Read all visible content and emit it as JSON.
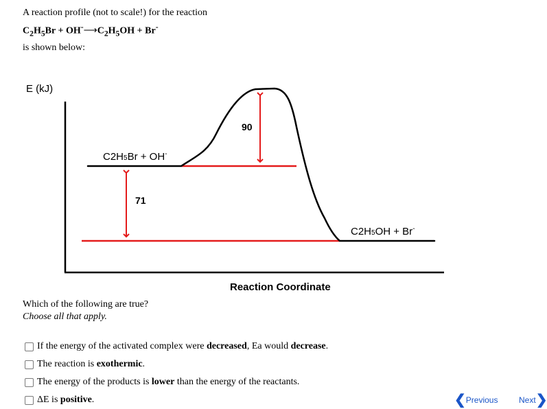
{
  "intro": {
    "line1": "A reaction profile (not to scale!) for the reaction",
    "reactant1": "C",
    "reactant1_sub1": "2",
    "reactant1_mid": "H",
    "reactant1_sub2": "5",
    "reactant1_end": "Br + OH",
    "reactant1_sup": "-",
    "product1": "C",
    "product1_sub1": "2",
    "product1_mid": "H",
    "product1_sub2": "5",
    "product1_end": "OH + Br",
    "product1_sup": "-",
    "line3": "is shown below:"
  },
  "diagram": {
    "y_axis_label": "E (kJ)",
    "x_axis_label": "Reaction Coordinate",
    "reactants_label": {
      "a": "C2H",
      "sub": "5",
      "b": "Br + OH",
      "sup": "-"
    },
    "products_label": {
      "a": "C2H",
      "sub": "5",
      "b": "OH + Br",
      "sup": "-"
    },
    "activation_energy_label": "90",
    "enthalpy_change_label": "71",
    "colors": {
      "curve": "#000000",
      "guide_lines": "#e41b1b",
      "arrows": "#e41b1b"
    }
  },
  "question": {
    "prompt": "Which of the following are true?",
    "instruction": "Choose all that apply."
  },
  "options": [
    {
      "parts": [
        {
          "t": "If the energy of the activated complex were ",
          "b": false
        },
        {
          "t": "decreased",
          "b": true
        },
        {
          "t": ", Ea would ",
          "b": false
        },
        {
          "t": "decrease",
          "b": true
        },
        {
          "t": ".",
          "b": false
        }
      ]
    },
    {
      "parts": [
        {
          "t": "The reaction is ",
          "b": false
        },
        {
          "t": "exothermic",
          "b": true
        },
        {
          "t": ".",
          "b": false
        }
      ]
    },
    {
      "parts": [
        {
          "t": "The energy of the products is ",
          "b": false
        },
        {
          "t": "lower",
          "b": true
        },
        {
          "t": " than the energy of the reactants.",
          "b": false
        }
      ]
    },
    {
      "parts": [
        {
          "t": "ΔE is ",
          "b": false
        },
        {
          "t": "positive",
          "b": true
        },
        {
          "t": ".",
          "b": false
        }
      ]
    }
  ],
  "nav": {
    "previous_label": "Previous",
    "next_label": "Next",
    "previous_icon": "chevron-left-icon",
    "next_icon": "chevron-right-icon"
  }
}
